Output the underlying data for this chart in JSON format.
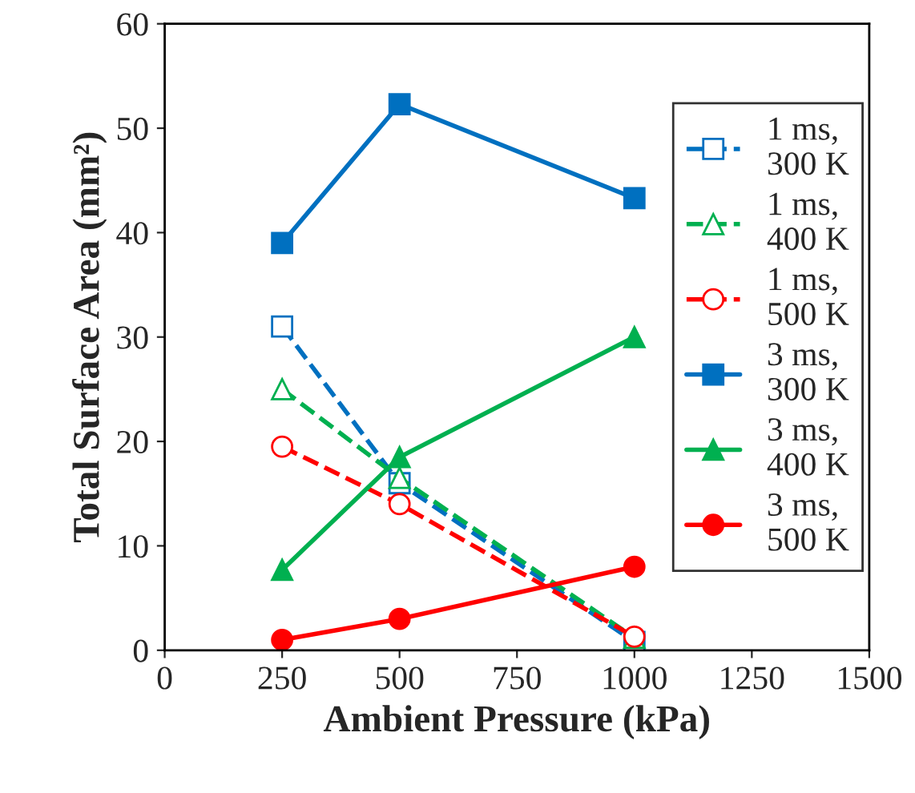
{
  "chart_data": {
    "type": "line",
    "xlabel": "Ambient Pressure (kPa)",
    "ylabel": "Total Surface Area (mm²)",
    "x": [
      250,
      500,
      1000
    ],
    "xlim": [
      0,
      1500
    ],
    "xticks": [
      0,
      250,
      500,
      750,
      1000,
      1250,
      1500
    ],
    "ylim": [
      0,
      60
    ],
    "yticks": [
      0,
      10,
      20,
      30,
      40,
      50,
      60
    ],
    "grid": false,
    "legend": "right",
    "series": [
      {
        "name": "1 ms,\n300 K",
        "color": "#0070c0",
        "values": [
          31,
          16,
          0.8
        ],
        "marker": "square",
        "line_style": "dashed"
      },
      {
        "name": "1 ms,\n400 K",
        "color": "#00b050",
        "values": [
          25,
          16.5,
          1.2
        ],
        "marker": "triangle",
        "line_style": "dashed"
      },
      {
        "name": "1 ms,\n500 K",
        "color": "#ff0000",
        "values": [
          19.5,
          14,
          1.3
        ],
        "marker": "circle",
        "line_style": "dashed"
      },
      {
        "name": "3 ms,\n300 K",
        "color": "#0070c0",
        "values": [
          39,
          52.3,
          43.3
        ],
        "marker": "square",
        "line_style": "solid"
      },
      {
        "name": "3 ms,\n400 K",
        "color": "#00b050",
        "values": [
          7.7,
          18.5,
          30
        ],
        "marker": "triangle",
        "line_style": "solid"
      },
      {
        "name": "3 ms,\n500 K",
        "color": "#ff0000",
        "values": [
          1,
          3,
          8
        ],
        "marker": "circle",
        "line_style": "solid"
      }
    ]
  }
}
